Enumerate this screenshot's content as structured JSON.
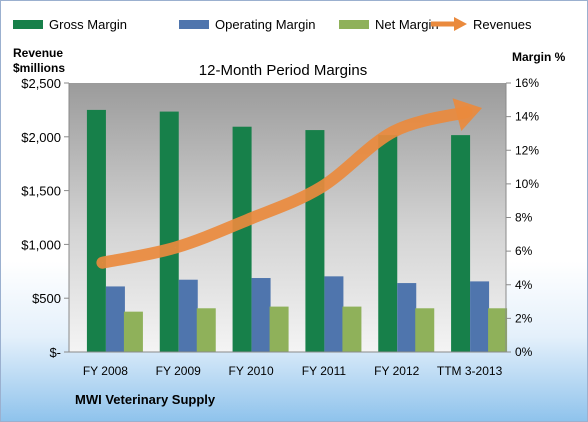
{
  "chart_data": {
    "type": "bar",
    "title": "12-Month Period Margins",
    "company": "MWI Veterinary Supply",
    "categories": [
      "FY 2008",
      "FY 2009",
      "FY 2010",
      "FY 2011",
      "FY 2012",
      "TTM 3-2013"
    ],
    "left_axis": {
      "label_line1": "Revenue",
      "label_line2": "$millions",
      "range": [
        0,
        2500
      ],
      "ticks": [
        0,
        500,
        1000,
        1500,
        2000,
        2500
      ],
      "tick_labels": [
        "$-",
        "$500",
        "$1,000",
        "$1,500",
        "$2,000",
        "$2,500"
      ]
    },
    "right_axis": {
      "label": "Margin %",
      "range": [
        0,
        16
      ],
      "ticks": [
        0,
        2,
        4,
        6,
        8,
        10,
        12,
        14,
        16
      ],
      "tick_labels": [
        "0%",
        "2%",
        "4%",
        "6%",
        "8%",
        "10%",
        "12%",
        "14%",
        "16%"
      ]
    },
    "series": [
      {
        "name": "Gross Margin",
        "axis": "right",
        "values": [
          14.4,
          14.3,
          13.4,
          13.2,
          12.9,
          12.9
        ],
        "color": "#17804a"
      },
      {
        "name": "Operating Margin",
        "axis": "right",
        "values": [
          3.9,
          4.3,
          4.4,
          4.5,
          4.1,
          4.2
        ],
        "color": "#4f75ad"
      },
      {
        "name": "Net Margin",
        "axis": "right",
        "values": [
          2.4,
          2.6,
          2.7,
          2.7,
          2.6,
          2.6
        ],
        "color": "#8fb15a"
      },
      {
        "name": "Revenues",
        "type": "line",
        "axis": "left",
        "values": [
          830,
          970,
          1230,
          1530,
          2050,
          2230
        ],
        "color": "#ea8a3d"
      }
    ],
    "legend_position": "top",
    "grid": false
  }
}
